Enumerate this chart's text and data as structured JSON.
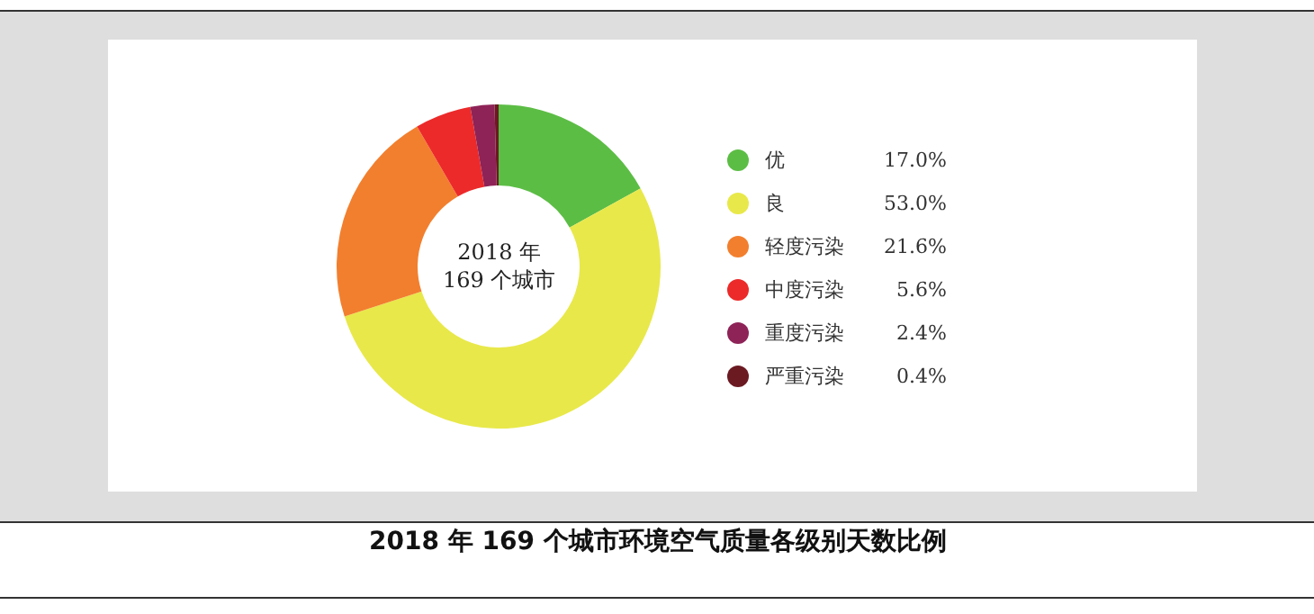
{
  "chart_data": {
    "type": "donut",
    "title": "2018 年 169 个城市环境空气质量各级别天数比例",
    "annotations": [
      "2018 年\n169 个城市"
    ],
    "categories": [
      "优",
      "良",
      "轻度污染",
      "中度污染",
      "重度污染",
      "严重污染"
    ],
    "values": [
      17.0,
      53.0,
      21.6,
      5.6,
      2.4,
      0.4
    ],
    "value_labels": [
      "17.0%",
      "53.0%",
      "21.6%",
      "5.6%",
      "2.4%",
      "0.4%"
    ],
    "colors": [
      "#5cbd45",
      "#e8e84a",
      "#f27f2e",
      "#ec2a2a",
      "#8e2357",
      "#6b1a22"
    ],
    "legend": "right"
  }
}
